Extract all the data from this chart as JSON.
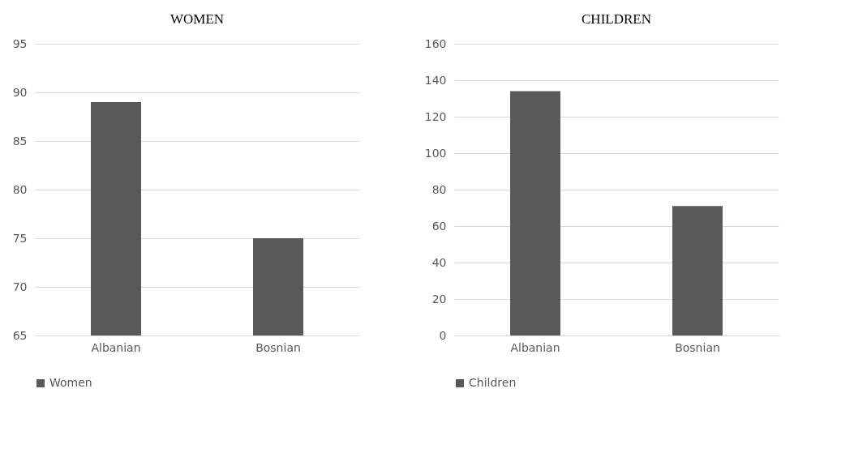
{
  "chart_data": [
    {
      "type": "bar",
      "title": "WOMEN",
      "categories": [
        "Albanian",
        "Bosnian"
      ],
      "series": [
        {
          "name": "Women",
          "color": "#595959",
          "values": [
            89,
            75
          ]
        }
      ],
      "ylim": [
        65,
        95
      ],
      "yticks": [
        65,
        70,
        75,
        80,
        85,
        90,
        95
      ],
      "grid": "y",
      "legend": "bottom"
    },
    {
      "type": "bar",
      "title": "CHILDREN",
      "categories": [
        "Albanian",
        "Bosnian"
      ],
      "series": [
        {
          "name": "Children",
          "color": "#595959",
          "values": [
            134,
            71
          ]
        }
      ],
      "ylim": [
        0,
        160
      ],
      "yticks": [
        0,
        20,
        40,
        60,
        80,
        100,
        120,
        140,
        160
      ],
      "grid": "y",
      "legend": "bottom"
    }
  ]
}
